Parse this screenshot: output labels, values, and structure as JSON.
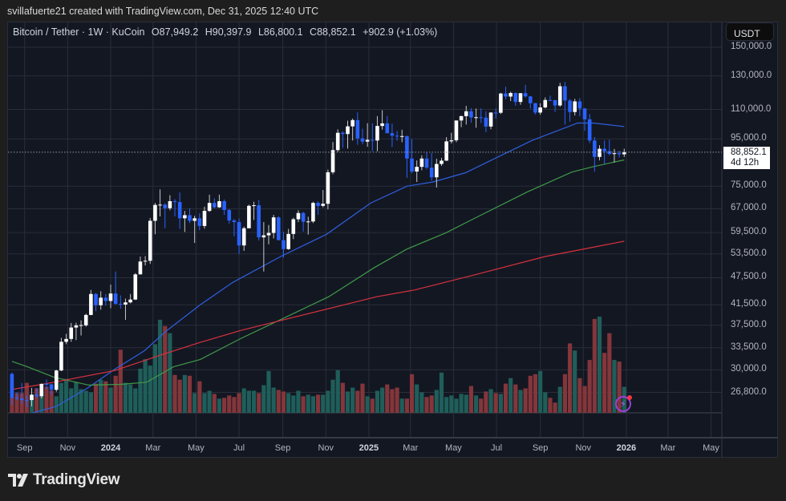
{
  "credit": "svillafuerte21 created with TradingView.com, Dec 31, 2025 12:40 UTC",
  "legend": {
    "symbol": "Bitcoin / Tether · 1W · KuCoin",
    "open": "O87,949.2",
    "high": "H90,397.9",
    "low": "L86,800.1",
    "close": "C88,852.1",
    "change": "+902.9 (+1.03%)"
  },
  "currency_button": "USDT",
  "last_price": {
    "value": "88,852.1",
    "countdown": "4d 12h"
  },
  "brand": "TradingView",
  "colors": {
    "up": "#ffffff",
    "down": "#2962ff",
    "vol_up": "#1f5e5a",
    "vol_down": "#83363b",
    "ma_blue": "#2f5fe0",
    "ma_green": "#3f9a48",
    "ma_red": "#d9313f",
    "background": "#131722",
    "grid": "#2a2e39"
  },
  "icons": {
    "alert": "lightning-bolt-icon",
    "logo": "tradingview-logo-icon"
  },
  "chart_data": {
    "type": "candlestick",
    "yscale": "log",
    "ylim": [
      24000,
      150000
    ],
    "grid": true,
    "y_ticks": [
      "150,000.0",
      "130,000.0",
      "110,000.0",
      "95,000.0",
      "75,000.0",
      "67,000.0",
      "59,500.0",
      "53,500.0",
      "47,500.0",
      "41,500.0",
      "37,500.0",
      "33,500.0",
      "30,000.0",
      "26,800.0"
    ],
    "y_tick_values": [
      150000,
      130000,
      110000,
      95000,
      75000,
      67000,
      59500,
      53500,
      47500,
      41500,
      37500,
      33500,
      30000,
      26800
    ],
    "x_ticks": [
      {
        "label": "Sep",
        "date": "2023-09-01"
      },
      {
        "label": "Nov",
        "date": "2023-11-01"
      },
      {
        "label": "2024",
        "date": "2024-01-01",
        "year": true
      },
      {
        "label": "Mar",
        "date": "2024-03-01"
      },
      {
        "label": "May",
        "date": "2024-05-01"
      },
      {
        "label": "Jul",
        "date": "2024-07-01"
      },
      {
        "label": "Sep",
        "date": "2024-09-01"
      },
      {
        "label": "Nov",
        "date": "2024-11-01"
      },
      {
        "label": "2025",
        "date": "2025-01-01",
        "year": true
      },
      {
        "label": "Mar",
        "date": "2025-03-01"
      },
      {
        "label": "May",
        "date": "2025-05-01"
      },
      {
        "label": "Jul",
        "date": "2025-07-01"
      },
      {
        "label": "Sep",
        "date": "2025-09-01"
      },
      {
        "label": "Nov",
        "date": "2025-11-01"
      },
      {
        "label": "2026",
        "date": "2026-01-01",
        "year": true
      },
      {
        "label": "Mar",
        "date": "2026-03-01"
      },
      {
        "label": "May",
        "date": "2026-05-01"
      }
    ],
    "first_week": "2023-08-14",
    "candle_fields": [
      "open",
      "high",
      "low",
      "close",
      "volume"
    ],
    "candles": [
      [
        29400,
        29600,
        25200,
        26100,
        20
      ],
      [
        26100,
        26800,
        25800,
        26000,
        25
      ],
      [
        26000,
        28100,
        25300,
        25800,
        25
      ],
      [
        25800,
        26400,
        24900,
        25750,
        38
      ],
      [
        25800,
        27400,
        25000,
        26500,
        22
      ],
      [
        26500,
        27400,
        26100,
        26300,
        31
      ],
      [
        26300,
        28000,
        26000,
        27970,
        23
      ],
      [
        27970,
        28600,
        27200,
        27900,
        33
      ],
      [
        27900,
        28000,
        26500,
        27150,
        28
      ],
      [
        27150,
        30000,
        26900,
        29900,
        21
      ],
      [
        29900,
        35200,
        29800,
        34500,
        38
      ],
      [
        34500,
        35900,
        34100,
        35000,
        43
      ],
      [
        35000,
        37900,
        34500,
        37050,
        31
      ],
      [
        37050,
        37950,
        34800,
        37450,
        39
      ],
      [
        37450,
        38400,
        35600,
        37500,
        30
      ],
      [
        37450,
        39700,
        37200,
        39450,
        28
      ],
      [
        39450,
        44700,
        39400,
        43800,
        26
      ],
      [
        43800,
        44000,
        40200,
        41400,
        37
      ],
      [
        41400,
        44400,
        40500,
        43000,
        42
      ],
      [
        43000,
        43800,
        41300,
        42300,
        40
      ],
      [
        42300,
        45900,
        40800,
        43900,
        32
      ],
      [
        43900,
        49000,
        41500,
        41700,
        47
      ],
      [
        41700,
        43500,
        40700,
        41550,
        80
      ],
      [
        41550,
        42800,
        38500,
        42000,
        38
      ],
      [
        42000,
        43800,
        41800,
        42600,
        36
      ],
      [
        42600,
        48600,
        42500,
        48300,
        31
      ],
      [
        48300,
        52800,
        48300,
        51500,
        56
      ],
      [
        51500,
        52900,
        50500,
        51700,
        68
      ],
      [
        51700,
        64000,
        50900,
        63100,
        60
      ],
      [
        63100,
        69000,
        59000,
        68300,
        87
      ],
      [
        68300,
        73800,
        64500,
        68400,
        118
      ],
      [
        68400,
        68900,
        60800,
        67200,
        110
      ],
      [
        67200,
        71700,
        66500,
        69600,
        101
      ],
      [
        69600,
        70300,
        64500,
        69300,
        48
      ],
      [
        69300,
        72700,
        60600,
        63900,
        42
      ],
      [
        63900,
        66300,
        59700,
        64900,
        48
      ],
      [
        64900,
        67200,
        62400,
        63100,
        47
      ],
      [
        63100,
        64700,
        56500,
        63900,
        25
      ],
      [
        63900,
        65500,
        60200,
        61500,
        40
      ],
      [
        61500,
        67700,
        60700,
        66300,
        25
      ],
      [
        66300,
        71900,
        66000,
        69000,
        28
      ],
      [
        69000,
        70600,
        67100,
        67500,
        24
      ],
      [
        67500,
        71900,
        67300,
        69600,
        18
      ],
      [
        69600,
        70200,
        65000,
        66600,
        19
      ],
      [
        66600,
        66900,
        62200,
        63200,
        22
      ],
      [
        63200,
        63700,
        58400,
        62700,
        20
      ],
      [
        62700,
        63800,
        53500,
        55800,
        25
      ],
      [
        55800,
        61300,
        54300,
        60800,
        31
      ],
      [
        60800,
        68400,
        61000,
        68000,
        28
      ],
      [
        68000,
        69400,
        63400,
        68200,
        28
      ],
      [
        68200,
        70000,
        57200,
        58100,
        25
      ],
      [
        58100,
        62700,
        49000,
        58700,
        35
      ],
      [
        58700,
        61800,
        56100,
        59400,
        53
      ],
      [
        59400,
        65000,
        57800,
        64200,
        32
      ],
      [
        64200,
        64500,
        57200,
        57300,
        29
      ],
      [
        57300,
        59800,
        52500,
        54800,
        27
      ],
      [
        54800,
        60600,
        54600,
        59100,
        25
      ],
      [
        59100,
        64100,
        57600,
        63600,
        22
      ],
      [
        63600,
        66500,
        62700,
        65600,
        28
      ],
      [
        65600,
        66000,
        59800,
        62800,
        21
      ],
      [
        62800,
        64400,
        58900,
        62900,
        23
      ],
      [
        62900,
        69400,
        62400,
        69000,
        21
      ],
      [
        69000,
        69500,
        65000,
        68000,
        23
      ],
      [
        68000,
        73600,
        67500,
        68700,
        23
      ],
      [
        68700,
        81500,
        66800,
        80400,
        28
      ],
      [
        80400,
        93500,
        79600,
        89800,
        42
      ],
      [
        89800,
        99600,
        89000,
        97900,
        54
      ],
      [
        97900,
        98600,
        90800,
        97300,
        38
      ],
      [
        97300,
        104000,
        90500,
        101100,
        27
      ],
      [
        101100,
        105100,
        94200,
        104300,
        32
      ],
      [
        104300,
        108400,
        92200,
        95200,
        28
      ],
      [
        95200,
        99900,
        92500,
        93700,
        37
      ],
      [
        93700,
        102700,
        91300,
        94500,
        21
      ],
      [
        94500,
        102700,
        89300,
        94200,
        18
      ],
      [
        94200,
        106400,
        89300,
        101300,
        28
      ],
      [
        101300,
        109600,
        99500,
        102600,
        32
      ],
      [
        102600,
        106400,
        97700,
        97700,
        36
      ],
      [
        97700,
        102500,
        91200,
        96500,
        30
      ],
      [
        96500,
        98800,
        94100,
        96100,
        32
      ],
      [
        96100,
        99400,
        93400,
        96300,
        18
      ],
      [
        96300,
        96500,
        78200,
        86100,
        18
      ],
      [
        86100,
        95000,
        80000,
        80700,
        49
      ],
      [
        80700,
        85300,
        76600,
        82600,
        36
      ],
      [
        82600,
        87500,
        81200,
        86100,
        26
      ],
      [
        86100,
        88700,
        81600,
        82300,
        20
      ],
      [
        82300,
        88500,
        77100,
        78400,
        22
      ],
      [
        78400,
        86000,
        74500,
        83800,
        29
      ],
      [
        83800,
        86400,
        83000,
        85200,
        51
      ],
      [
        85200,
        95800,
        85100,
        93800,
        20
      ],
      [
        93800,
        97900,
        92800,
        94300,
        22
      ],
      [
        94300,
        104100,
        93400,
        104100,
        18
      ],
      [
        104100,
        106600,
        100700,
        106400,
        24
      ],
      [
        106400,
        112000,
        102000,
        109000,
        23
      ],
      [
        109000,
        110700,
        103000,
        105700,
        34
      ],
      [
        105700,
        110500,
        100400,
        105800,
        22
      ],
      [
        105800,
        110600,
        102800,
        105600,
        18
      ],
      [
        105600,
        109000,
        98200,
        101000,
        27
      ],
      [
        101000,
        108500,
        99600,
        108300,
        30
      ],
      [
        108300,
        110500,
        105100,
        108200,
        25
      ],
      [
        108200,
        119500,
        107500,
        119100,
        24
      ],
      [
        119100,
        123200,
        115700,
        117300,
        37
      ],
      [
        117300,
        120200,
        114700,
        119400,
        44
      ],
      [
        119400,
        119800,
        112000,
        114200,
        36
      ],
      [
        114200,
        119300,
        112600,
        119300,
        29
      ],
      [
        119300,
        124400,
        116800,
        117400,
        31
      ],
      [
        117400,
        117600,
        110600,
        113500,
        47
      ],
      [
        113500,
        113600,
        107300,
        108300,
        49
      ],
      [
        108300,
        113400,
        107200,
        111100,
        53
      ],
      [
        111100,
        116800,
        110600,
        115300,
        26
      ],
      [
        115300,
        117900,
        114700,
        115200,
        19
      ],
      [
        115200,
        115400,
        108600,
        112200,
        13
      ],
      [
        112200,
        125600,
        111500,
        123500,
        33
      ],
      [
        123500,
        126200,
        102000,
        115000,
        49
      ],
      [
        115000,
        115900,
        103500,
        108600,
        88
      ],
      [
        108600,
        116000,
        106700,
        114500,
        79
      ],
      [
        114500,
        116400,
        106300,
        110500,
        44
      ],
      [
        110500,
        110800,
        98900,
        104700,
        34
      ],
      [
        104700,
        107500,
        93000,
        94200,
        67
      ],
      [
        94200,
        95900,
        80600,
        86800,
        119
      ],
      [
        86800,
        92000,
        85300,
        90400,
        122
      ],
      [
        90400,
        94200,
        83800,
        89300,
        76
      ],
      [
        89300,
        94600,
        87500,
        88100,
        101
      ],
      [
        88100,
        90300,
        84400,
        88400,
        67
      ],
      [
        88400,
        89500,
        86600,
        87950,
        65
      ],
      [
        87949.2,
        90397.9,
        86800.1,
        88852.1,
        33
      ]
    ],
    "moving_averages": [
      {
        "color": "#2f5fe0",
        "points": [
          [
            "2023-09-12",
            24200
          ],
          [
            "2023-10-16",
            24990
          ],
          [
            "2023-11-30",
            27450
          ],
          [
            "2024-01-07",
            30100
          ],
          [
            "2024-02-18",
            33000
          ],
          [
            "2024-03-19",
            36330
          ],
          [
            "2024-05-07",
            41500
          ],
          [
            "2024-06-22",
            46400
          ],
          [
            "2024-08-29",
            52800
          ],
          [
            "2024-11-02",
            59000
          ],
          [
            "2025-01-04",
            69000
          ],
          [
            "2025-02-24",
            75000
          ],
          [
            "2025-04-02",
            76600
          ],
          [
            "2025-05-18",
            80200
          ],
          [
            "2025-08-20",
            94200
          ],
          [
            "2025-10-24",
            102800
          ],
          [
            "2025-11-15",
            102800
          ],
          [
            "2025-12-29",
            101000
          ]
        ]
      },
      {
        "color": "#3f9a48",
        "points": [
          [
            "2023-08-14",
            31300
          ],
          [
            "2023-09-05",
            30450
          ],
          [
            "2023-10-13",
            28900
          ],
          [
            "2023-12-01",
            27800
          ],
          [
            "2024-01-15",
            27900
          ],
          [
            "2024-02-21",
            28200
          ],
          [
            "2024-03-30",
            30450
          ],
          [
            "2024-05-07",
            31600
          ],
          [
            "2024-07-03",
            35050
          ],
          [
            "2024-11-05",
            43200
          ],
          [
            "2025-01-09",
            50000
          ],
          [
            "2025-02-24",
            54800
          ],
          [
            "2025-04-21",
            59500
          ],
          [
            "2025-05-29",
            63700
          ],
          [
            "2025-08-13",
            72800
          ],
          [
            "2025-10-16",
            80500
          ],
          [
            "2025-11-15",
            82700
          ],
          [
            "2025-12-29",
            85500
          ]
        ]
      },
      {
        "color": "#d9313f",
        "points": [
          [
            "2023-08-14",
            27200
          ],
          [
            "2023-10-13",
            28200
          ],
          [
            "2024-01-07",
            29900
          ],
          [
            "2024-03-12",
            32300
          ],
          [
            "2024-05-07",
            34400
          ],
          [
            "2024-07-03",
            36500
          ],
          [
            "2025-01-12",
            43200
          ],
          [
            "2025-03-07",
            44700
          ],
          [
            "2025-05-29",
            48100
          ],
          [
            "2025-09-08",
            52800
          ],
          [
            "2025-12-29",
            57000
          ]
        ]
      }
    ]
  }
}
